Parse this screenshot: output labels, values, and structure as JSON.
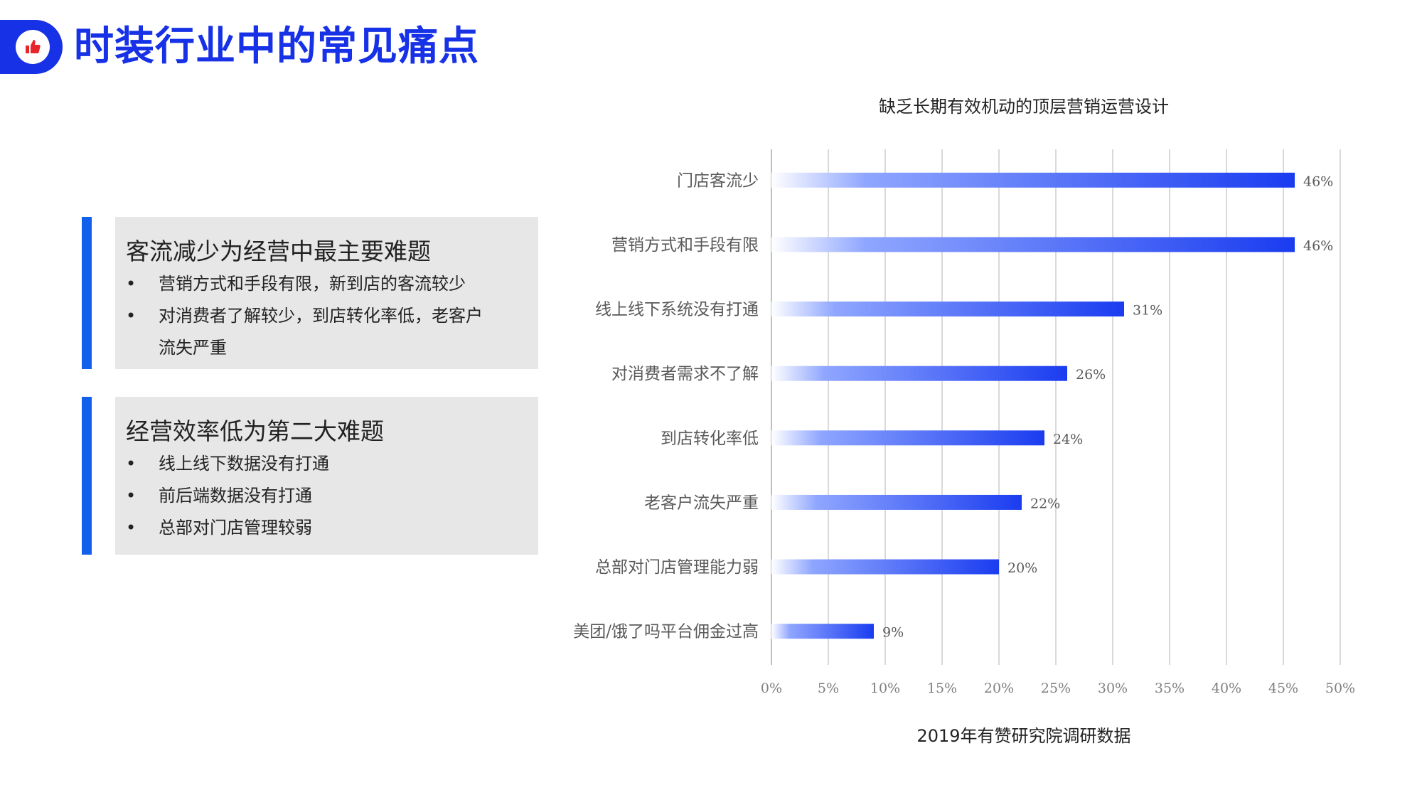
{
  "page": {
    "title": "时装行业中的常见痛点"
  },
  "cards": [
    {
      "heading": "客流减少为经营中最主要难题",
      "bullets": [
        "营销方式和手段有限，新到店的客流较少",
        "对消费者了解较少，到店转化率低，老客户流失严重"
      ]
    },
    {
      "heading": "经营效率低为第二大难题",
      "bullets": [
        "线上线下数据没有打通",
        "前后端数据没有打通",
        "总部对门店管理较弱"
      ]
    }
  ],
  "bullet_symbol": "•",
  "colors": {
    "accent": "#1631e6",
    "bar_end": "#1a3cf0",
    "card_bar": "#1160ec"
  },
  "chart_data": {
    "type": "bar",
    "orientation": "horizontal",
    "title": "缺乏长期有效机动的顶层营销运营设计",
    "source": "2019年有赞研究院调研数据",
    "categories": [
      "门店客流少",
      "营销方式和手段有限",
      "线上线下系统没有打通",
      "对消费者需求不了解",
      "到店转化率低",
      "老客户流失严重",
      "总部对门店管理能力弱",
      "美团/饿了吗平台佣金过高"
    ],
    "values": [
      46,
      46,
      31,
      26,
      24,
      22,
      20,
      9
    ],
    "value_labels": [
      "46%",
      "46%",
      "31%",
      "26%",
      "24%",
      "22%",
      "20%",
      "9%"
    ],
    "xlim": [
      0,
      50
    ],
    "ticks": [
      "0%",
      "5%",
      "10%",
      "15%",
      "20%",
      "25%",
      "30%",
      "35%",
      "40%",
      "45%",
      "50%"
    ],
    "grid": true
  }
}
